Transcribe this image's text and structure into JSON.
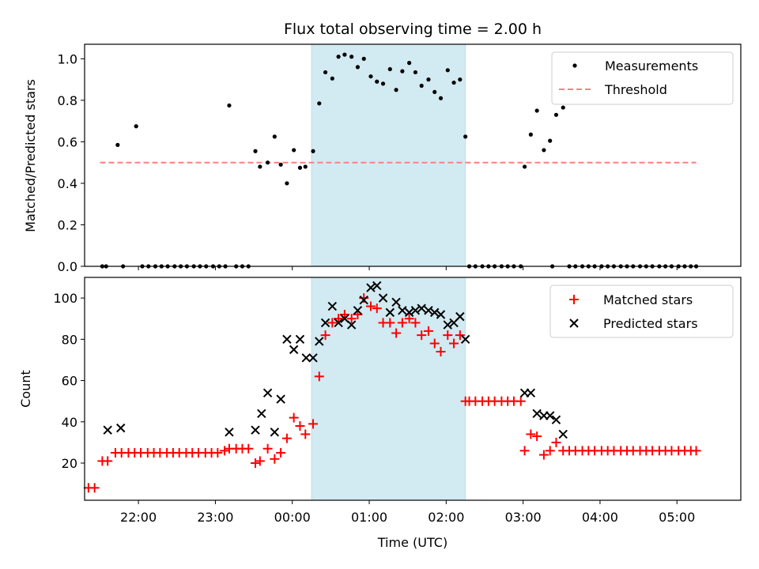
{
  "figure": {
    "title": "Flux total observing time = 2.00 h"
  },
  "chart_data": [
    {
      "type": "scatter",
      "ylabel": "Matched/Predicted stars",
      "xlabel": "",
      "x_unit": "hours since 21:00 UTC",
      "xlim": [
        0.3,
        8.83
      ],
      "ylim": [
        0,
        1.07
      ],
      "yticks": [
        0,
        0.2,
        0.4,
        0.6,
        0.8,
        1.0
      ],
      "ytick_labels": [
        "0.0",
        "0.2",
        "0.4",
        "0.6",
        "0.8",
        "1.0"
      ],
      "shaded_span": {
        "x0": 3.25,
        "x1": 5.25,
        "color": "#add8e6"
      },
      "threshold": {
        "name": "Threshold",
        "y": 0.5,
        "x0": 0.5,
        "x1": 8.25,
        "color": "#ff7f7f"
      },
      "legend": {
        "position": "upper right",
        "entries": [
          "Measurements",
          "Threshold"
        ]
      },
      "series": [
        {
          "name": "Measurements",
          "color": "#000000",
          "x": [
            0.53,
            0.58,
            0.73,
            0.8,
            0.97,
            1.05,
            1.13,
            1.22,
            1.3,
            1.38,
            1.47,
            1.55,
            1.63,
            1.72,
            1.8,
            1.88,
            1.97,
            2.05,
            2.13,
            2.18,
            2.27,
            2.35,
            2.43,
            2.52,
            2.58,
            2.68,
            2.77,
            2.85,
            2.93,
            3.02,
            3.1,
            3.17,
            3.27,
            3.35,
            3.43,
            3.52,
            3.6,
            3.68,
            3.77,
            3.85,
            3.93,
            4.02,
            4.1,
            4.18,
            4.27,
            4.35,
            4.43,
            4.52,
            4.6,
            4.68,
            4.77,
            4.85,
            4.93,
            5.02,
            5.1,
            5.18,
            5.25,
            5.3,
            5.38,
            5.47,
            5.55,
            5.63,
            5.72,
            5.8,
            5.88,
            5.97,
            6.02,
            6.1,
            6.18,
            6.27,
            6.35,
            6.38,
            6.43,
            6.52,
            6.6,
            6.68,
            6.77,
            6.85,
            6.93,
            7.02,
            7.1,
            7.18,
            7.27,
            7.35,
            7.43,
            7.52,
            7.6,
            7.68,
            7.77,
            7.85,
            7.93,
            8.02,
            8.1,
            8.18,
            8.25
          ],
          "y": [
            0,
            0,
            0.585,
            0,
            0.675,
            0,
            0,
            0,
            0,
            0,
            0,
            0,
            0,
            0,
            0,
            0,
            0,
            0,
            0,
            0.775,
            0,
            0,
            0,
            0.555,
            0.48,
            0.5,
            0.625,
            0.49,
            0.4,
            0.56,
            0.475,
            0.48,
            0.555,
            0.785,
            0.935,
            0.905,
            1.01,
            1.02,
            1.01,
            0.96,
            1.0,
            0.915,
            0.89,
            0.88,
            0.95,
            0.85,
            0.94,
            0.98,
            0.935,
            0.87,
            0.9,
            0.84,
            0.81,
            0.945,
            0.885,
            0.9,
            0.625,
            0,
            0,
            0,
            0,
            0,
            0,
            0,
            0,
            0,
            0.48,
            0.635,
            0.75,
            0.56,
            0.605,
            0,
            0.73,
            0.765,
            0,
            0,
            0,
            0,
            0,
            0,
            0,
            0,
            0,
            0,
            0,
            0,
            0,
            0,
            0,
            0,
            0,
            0,
            0,
            0,
            0
          ]
        }
      ]
    },
    {
      "type": "scatter",
      "ylabel": "Count",
      "xlabel": "Time (UTC)",
      "x_unit": "hours since 21:00 UTC",
      "xlim": [
        0.3,
        8.83
      ],
      "ylim": [
        2,
        110
      ],
      "yticks": [
        20,
        40,
        60,
        80,
        100
      ],
      "ytick_labels": [
        "20",
        "40",
        "60",
        "80",
        "100"
      ],
      "xticks": [
        1,
        2,
        3,
        4,
        5,
        6,
        7,
        8
      ],
      "xtick_labels": [
        "22:00",
        "23:00",
        "00:00",
        "01:00",
        "02:00",
        "03:00",
        "04:00",
        "05:00"
      ],
      "shaded_span": {
        "x0": 3.25,
        "x1": 5.25,
        "color": "#add8e6"
      },
      "legend": {
        "position": "upper right",
        "entries": [
          "Matched stars",
          "Predicted stars"
        ]
      },
      "series": [
        {
          "name": "Matched stars",
          "marker": "plus",
          "color": "#ff0000",
          "x": [
            0.35,
            0.43,
            0.53,
            0.6,
            0.7,
            0.78,
            0.87,
            0.95,
            1.03,
            1.12,
            1.2,
            1.28,
            1.37,
            1.45,
            1.53,
            1.62,
            1.7,
            1.78,
            1.87,
            1.95,
            2.03,
            2.12,
            2.18,
            2.27,
            2.35,
            2.43,
            2.52,
            2.58,
            2.68,
            2.77,
            2.85,
            2.93,
            3.02,
            3.1,
            3.17,
            3.27,
            3.35,
            3.43,
            3.52,
            3.6,
            3.68,
            3.77,
            3.85,
            3.93,
            4.02,
            4.1,
            4.18,
            4.27,
            4.35,
            4.43,
            4.52,
            4.6,
            4.68,
            4.77,
            4.85,
            4.93,
            5.02,
            5.1,
            5.18,
            5.25,
            5.3,
            5.38,
            5.47,
            5.55,
            5.63,
            5.72,
            5.8,
            5.88,
            5.97,
            6.02,
            6.1,
            6.18,
            6.27,
            6.35,
            6.43,
            6.52,
            6.6,
            6.68,
            6.77,
            6.85,
            6.93,
            7.02,
            7.1,
            7.18,
            7.27,
            7.35,
            7.43,
            7.52,
            7.6,
            7.68,
            7.77,
            7.85,
            7.93,
            8.02,
            8.1,
            8.18,
            8.25
          ],
          "y": [
            8,
            8,
            21,
            21,
            25,
            25,
            25,
            25,
            25,
            25,
            25,
            25,
            25,
            25,
            25,
            25,
            25,
            25,
            25,
            25,
            25,
            26,
            27,
            27,
            27,
            27,
            20,
            21,
            27,
            22,
            25,
            32,
            42,
            38,
            34,
            39,
            62,
            82,
            88,
            90,
            92,
            90,
            92,
            100,
            96,
            95,
            88,
            88,
            83,
            88,
            90,
            88,
            82,
            84,
            78,
            74,
            82,
            78,
            82,
            50,
            50,
            50,
            50,
            50,
            50,
            50,
            50,
            50,
            50,
            26,
            34,
            33,
            24,
            26,
            30,
            26,
            26,
            26,
            26,
            26,
            26,
            26,
            26,
            26,
            26,
            26,
            26,
            26,
            26,
            26,
            26,
            26,
            26,
            26,
            26,
            26,
            26
          ]
        },
        {
          "name": "Predicted stars",
          "marker": "x",
          "color": "#000000",
          "x": [
            0.6,
            0.77,
            2.18,
            2.52,
            2.6,
            2.68,
            2.77,
            2.85,
            2.93,
            3.02,
            3.1,
            3.18,
            3.27,
            3.35,
            3.43,
            3.52,
            3.6,
            3.68,
            3.77,
            3.85,
            3.93,
            4.02,
            4.1,
            4.18,
            4.27,
            4.35,
            4.43,
            4.52,
            4.6,
            4.68,
            4.77,
            4.85,
            4.93,
            5.02,
            5.1,
            5.18,
            5.25,
            6.02,
            6.1,
            6.18,
            6.27,
            6.35,
            6.43,
            6.52
          ],
          "y": [
            36,
            37,
            35,
            36,
            44,
            54,
            35,
            51,
            80,
            75,
            80,
            71,
            71,
            79,
            88,
            96,
            88,
            90,
            87,
            94,
            99,
            105,
            106,
            100,
            93,
            98,
            94,
            93,
            94,
            95,
            94,
            93,
            92,
            87,
            88,
            91,
            80,
            54,
            54,
            44,
            43,
            43,
            41,
            34
          ]
        }
      ]
    }
  ]
}
